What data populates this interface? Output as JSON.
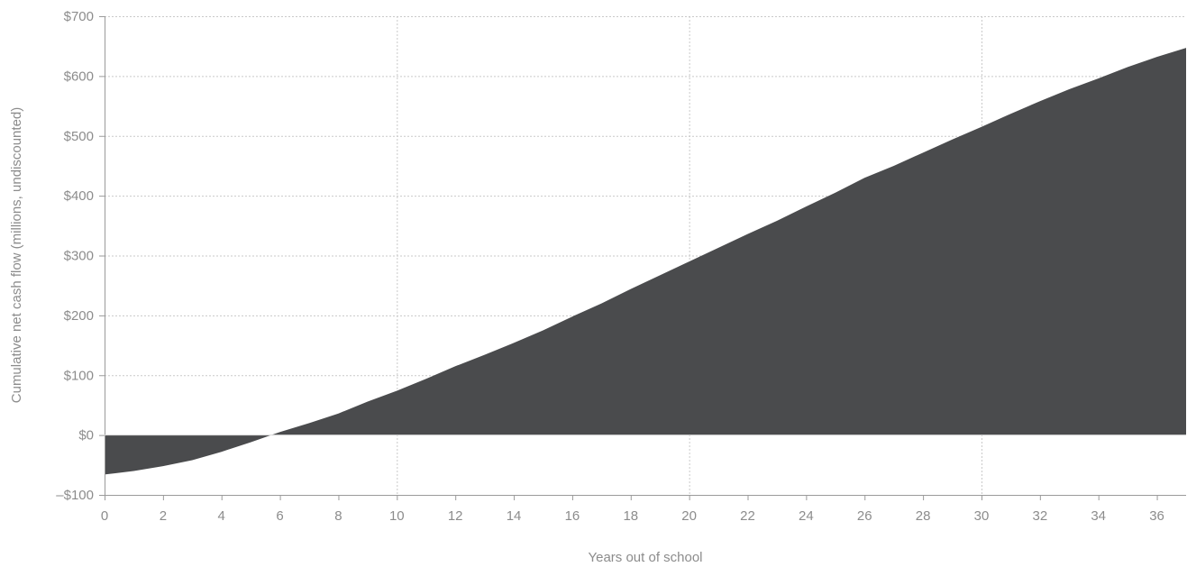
{
  "chart_data": {
    "type": "area",
    "title": "",
    "xlabel": "Years out of school",
    "ylabel": "Cumulative net cash flow (millions, undiscounted)",
    "xlim": [
      0,
      37
    ],
    "ylim": [
      -100,
      700
    ],
    "x_ticks": [
      0,
      2,
      4,
      6,
      8,
      10,
      12,
      14,
      16,
      18,
      20,
      22,
      24,
      26,
      28,
      30,
      32,
      34,
      36
    ],
    "x_tick_labels": [
      "0",
      "2",
      "4",
      "6",
      "8",
      "10",
      "12",
      "14",
      "16",
      "18",
      "20",
      "22",
      "24",
      "26",
      "28",
      "30",
      "32",
      "34",
      "36"
    ],
    "y_ticks": [
      -100,
      0,
      100,
      200,
      300,
      400,
      500,
      600,
      700
    ],
    "y_tick_labels": [
      "–$100",
      "$0",
      "$100",
      "$200",
      "$300",
      "$400",
      "$500",
      "$600",
      "$700"
    ],
    "x_gridlines": [
      10,
      20,
      30
    ],
    "y_gridlines": [
      100,
      200,
      300,
      400,
      500,
      600,
      700
    ],
    "grid": true,
    "fill_color": "#4a4b4d",
    "axis_text_color": "#8c8c8c",
    "series": [
      {
        "x": [
          0,
          1,
          2,
          3,
          4,
          5,
          6,
          7,
          8,
          9,
          10,
          11,
          12,
          13,
          14,
          15,
          16,
          17,
          18,
          19,
          20,
          21,
          22,
          23,
          24,
          25,
          26,
          27,
          28,
          29,
          30,
          31,
          32,
          33,
          34,
          35,
          36,
          37
        ],
        "values": [
          -66,
          -60,
          -52,
          -42,
          -28,
          -12,
          5,
          20,
          36,
          56,
          74,
          94,
          115,
          134,
          154,
          175,
          198,
          220,
          244,
          267,
          290,
          313,
          336,
          358,
          382,
          405,
          430,
          450,
          472,
          494,
          515,
          537,
          558,
          578,
          596,
          615,
          632,
          647
        ]
      }
    ]
  }
}
